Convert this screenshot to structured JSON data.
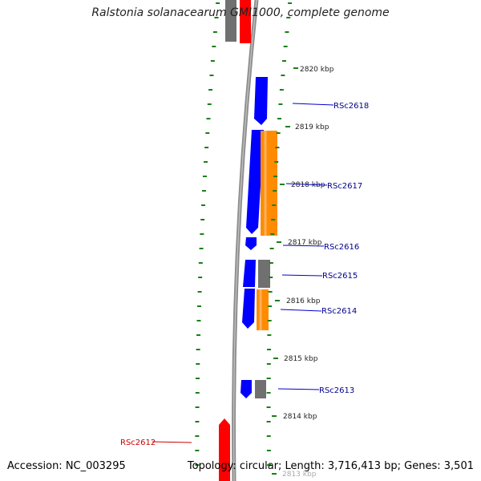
{
  "title": "Ralstonia solanacearum GMI1000, complete genome",
  "accession": "Accession: NC_003295",
  "summary": "Topology: circular; Length: 3,716,413 bp; Genes: 3,501",
  "tick_labels": [
    "2820 kbp",
    "2819 kbp",
    "2818 kbp",
    "2817 kbp",
    "2816 kbp",
    "2815 kbp",
    "2814 kbp",
    "2813 kbp"
  ],
  "gene_labels": [
    "RSc2618",
    "RSc2617",
    "RSc2616",
    "RSc2615",
    "RSc2614",
    "RSc2613",
    "RSc2612"
  ],
  "colors": {
    "backbone": "#8c8c8c",
    "cds_blue": "#0000ff",
    "orange": "#ff8c00",
    "grey": "#707070",
    "red": "#ff0000",
    "dashes": "#1a7f1a",
    "label_blue": "#00008b",
    "label_red": "#cc0000"
  }
}
